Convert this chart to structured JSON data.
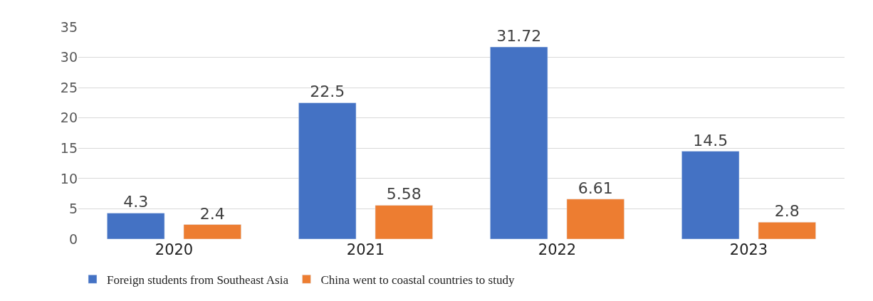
{
  "chart_data": {
    "type": "bar",
    "categories": [
      "2020",
      "2021",
      "2022",
      "2023"
    ],
    "series": [
      {
        "name": "Foreign students from Southeast Asia",
        "color": "#4472c4",
        "values": [
          4.3,
          22.5,
          31.72,
          14.5
        ]
      },
      {
        "name": "China went to coastal countries to study",
        "color": "#ed7d31",
        "values": [
          2.4,
          5.58,
          6.61,
          2.8
        ]
      }
    ],
    "ylim": [
      0,
      35
    ],
    "yticks": [
      0,
      5,
      10,
      15,
      20,
      25,
      30,
      35
    ],
    "grid": "y",
    "legend": "bottom left",
    "data_labels": true
  }
}
